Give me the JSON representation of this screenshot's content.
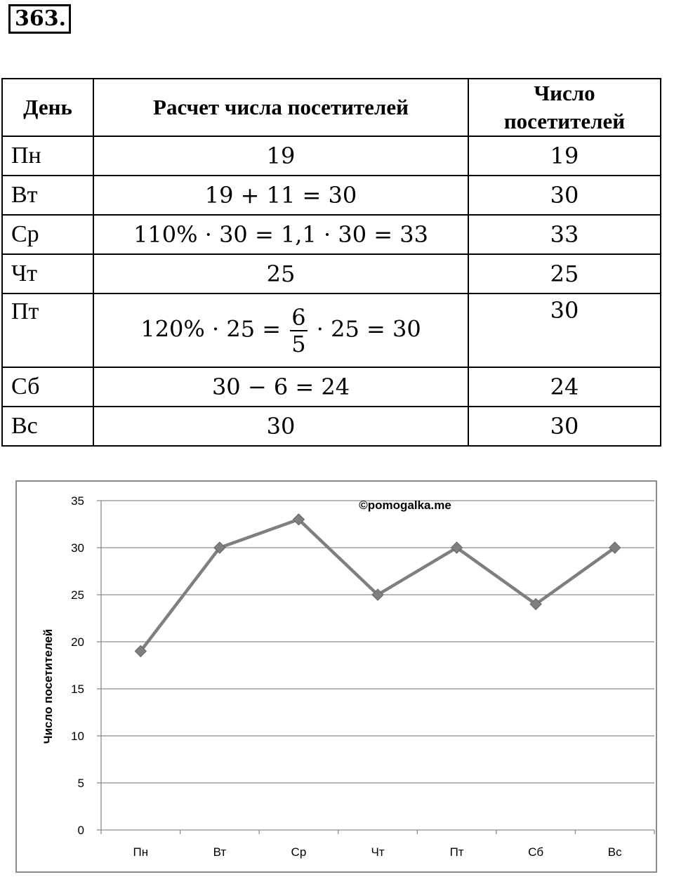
{
  "task_number": "363.",
  "table": {
    "headers": {
      "day": "День",
      "calc": "Расчет числа посетителей",
      "count_line1": "Число",
      "count_line2": "посетителей"
    },
    "rows": [
      {
        "day": "Пн",
        "calc": "19",
        "count": "19"
      },
      {
        "day": "Вт",
        "calc": "19 + 11 = 30",
        "count": "30"
      },
      {
        "day": "Ср",
        "calc": "110% · 30 = 1,1 · 30 = 33",
        "count": "33"
      },
      {
        "day": "Чт",
        "calc": "25",
        "count": "25"
      },
      {
        "day": "Пт",
        "calc_before": "120% · 25 =",
        "calc_frac_num": "6",
        "calc_frac_den": "5",
        "calc_after": "· 25 = 30",
        "count": "30"
      },
      {
        "day": "Сб",
        "calc": "30 − 6 = 24",
        "count": "24"
      },
      {
        "day": "Вс",
        "calc": "30",
        "count": "30"
      }
    ]
  },
  "chart_data": {
    "type": "line",
    "categories": [
      "Пн",
      "Вт",
      "Ср",
      "Чт",
      "Пт",
      "Сб",
      "Вс"
    ],
    "series": [
      {
        "values": [
          19,
          30,
          33,
          25,
          30,
          24,
          30
        ]
      }
    ],
    "ylabel": "Число посетителей",
    "xlabel": "",
    "ylim": [
      0,
      35
    ],
    "yticks": [
      0,
      5,
      10,
      15,
      20,
      25,
      30,
      35
    ],
    "grid": true,
    "legend": "none",
    "line_color": "#7f7f7f",
    "watermark": "©pomogalka.me"
  }
}
